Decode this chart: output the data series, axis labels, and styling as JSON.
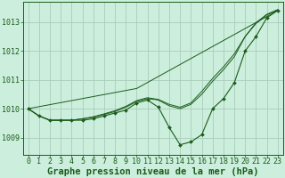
{
  "background_color": "#cceedd",
  "grid_color": "#aaccbb",
  "line_color": "#1a5c1a",
  "title": "Graphe pression niveau de la mer (hPa)",
  "xlim": [
    -0.5,
    23.5
  ],
  "ylim": [
    1008.4,
    1013.7
  ],
  "yticks": [
    1009,
    1010,
    1011,
    1012,
    1013
  ],
  "xticks": [
    0,
    1,
    2,
    3,
    4,
    5,
    6,
    7,
    8,
    9,
    10,
    11,
    12,
    13,
    14,
    15,
    16,
    17,
    18,
    19,
    20,
    21,
    22,
    23
  ],
  "lines": [
    {
      "x": [
        0,
        1,
        2,
        3,
        4,
        5,
        6,
        7,
        8,
        9,
        10,
        11,
        12,
        13,
        14,
        15,
        16,
        17,
        18,
        19,
        20,
        21,
        22,
        23
      ],
      "y": [
        1010.0,
        1009.75,
        1009.6,
        1009.6,
        1009.6,
        1009.6,
        1009.65,
        1009.75,
        1009.85,
        1009.95,
        1010.2,
        1010.3,
        1010.05,
        1009.35,
        1008.75,
        1008.85,
        1009.1,
        1010.0,
        1010.35,
        1010.9,
        1012.0,
        1012.5,
        1013.15,
        1013.4
      ],
      "marker": true
    },
    {
      "x": [
        0,
        10,
        23
      ],
      "y": [
        1010.0,
        1010.7,
        1013.4
      ],
      "marker": false
    },
    {
      "x": [
        0,
        1,
        2,
        3,
        4,
        5,
        6,
        7,
        8,
        9,
        10,
        11,
        12,
        13,
        14,
        15,
        16,
        17,
        18,
        19,
        20,
        21,
        22,
        23
      ],
      "y": [
        1010.0,
        1009.75,
        1009.6,
        1009.6,
        1009.6,
        1009.65,
        1009.7,
        1009.8,
        1009.9,
        1010.05,
        1010.25,
        1010.35,
        1010.3,
        1010.1,
        1010.0,
        1010.15,
        1010.5,
        1010.95,
        1011.35,
        1011.8,
        1012.5,
        1012.95,
        1013.25,
        1013.42
      ],
      "marker": false
    },
    {
      "x": [
        0,
        1,
        2,
        3,
        4,
        5,
        6,
        7,
        8,
        9,
        10,
        11,
        12,
        13,
        14,
        15,
        16,
        17,
        18,
        19,
        20,
        21,
        22,
        23
      ],
      "y": [
        1010.0,
        1009.75,
        1009.6,
        1009.6,
        1009.6,
        1009.65,
        1009.72,
        1009.82,
        1009.93,
        1010.08,
        1010.28,
        1010.38,
        1010.32,
        1010.15,
        1010.05,
        1010.2,
        1010.6,
        1011.05,
        1011.45,
        1011.9,
        1012.5,
        1012.98,
        1013.27,
        1013.43
      ],
      "marker": false
    }
  ],
  "title_fontsize": 7.5,
  "tick_fontsize": 6.0
}
